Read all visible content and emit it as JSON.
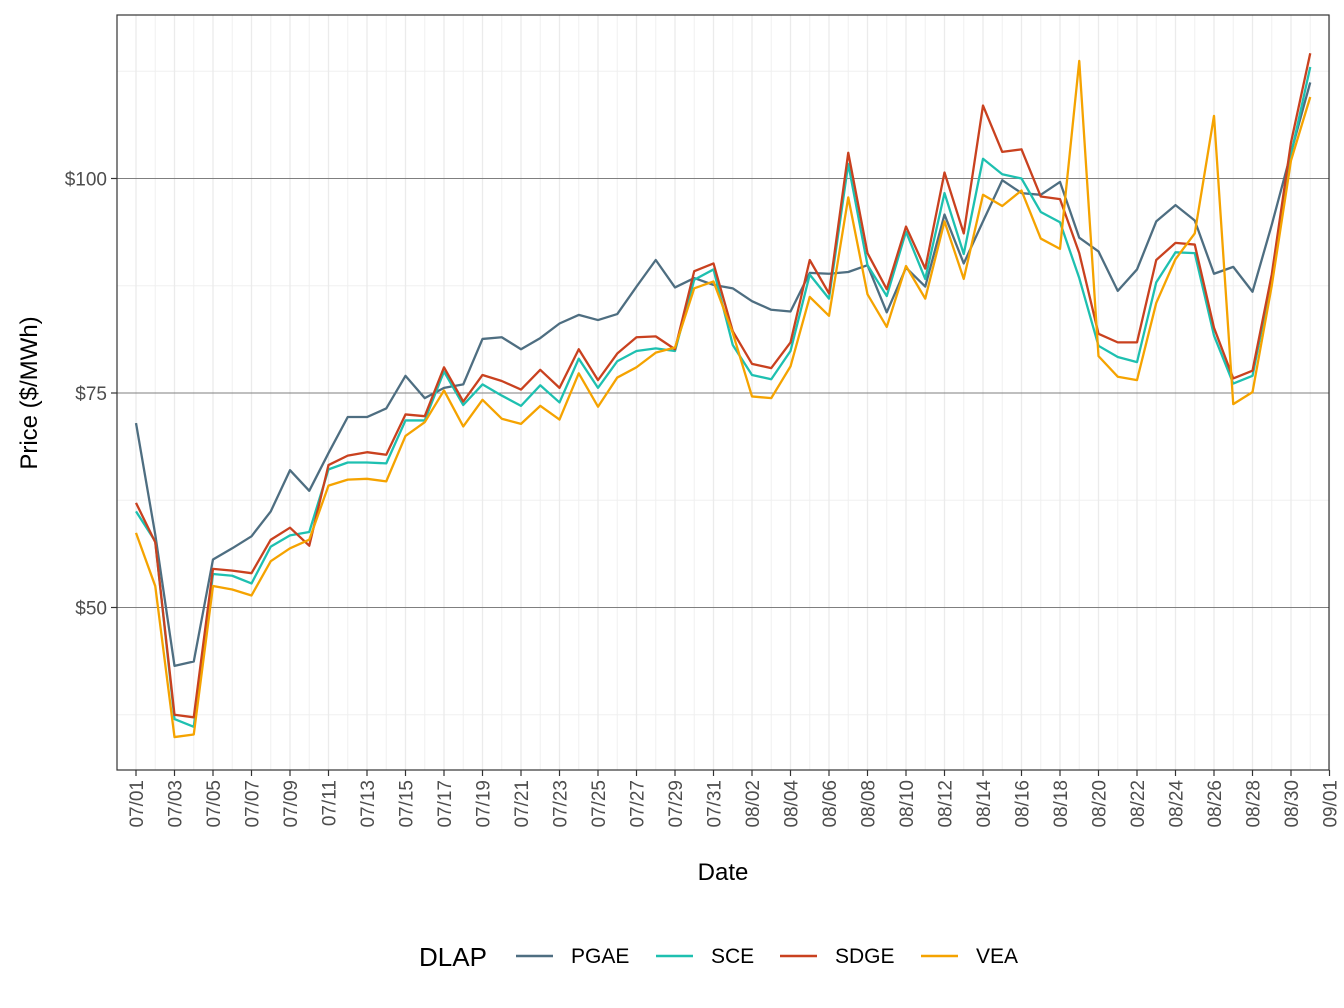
{
  "chart_data": {
    "type": "line",
    "title": "",
    "xlabel": "Date",
    "ylabel": "Price ($/MWh)",
    "ylim": [
      30,
      120
    ],
    "y_ticks": [
      50,
      75,
      100
    ],
    "y_tick_labels": [
      "$50",
      "$75",
      "$100"
    ],
    "x_tick_labels": [
      "07/01",
      "07/03",
      "07/05",
      "07/07",
      "07/09",
      "07/11",
      "07/13",
      "07/15",
      "07/17",
      "07/19",
      "07/21",
      "07/23",
      "07/25",
      "07/27",
      "07/29",
      "07/31",
      "08/02",
      "08/04",
      "08/06",
      "08/08",
      "08/10",
      "08/12",
      "08/14",
      "08/16",
      "08/18",
      "08/20",
      "08/22",
      "08/24",
      "08/26",
      "08/28",
      "08/30",
      "09/01"
    ],
    "grid": true,
    "legend": {
      "title": "DLAP",
      "position": "bottom"
    },
    "x": [
      "07/01",
      "07/02",
      "07/03",
      "07/04",
      "07/05",
      "07/06",
      "07/07",
      "07/08",
      "07/09",
      "07/10",
      "07/11",
      "07/12",
      "07/13",
      "07/14",
      "07/15",
      "07/16",
      "07/17",
      "07/18",
      "07/19",
      "07/20",
      "07/21",
      "07/22",
      "07/23",
      "07/24",
      "07/25",
      "07/26",
      "07/27",
      "07/28",
      "07/29",
      "07/30",
      "07/31",
      "08/01",
      "08/02",
      "08/03",
      "08/04",
      "08/05",
      "08/06",
      "08/07",
      "08/08",
      "08/09",
      "08/10",
      "08/11",
      "08/12",
      "08/13",
      "08/14",
      "08/15",
      "08/16",
      "08/17",
      "08/18",
      "08/19",
      "08/20",
      "08/21",
      "08/22",
      "08/23",
      "08/24",
      "08/25",
      "08/26",
      "08/27",
      "08/28",
      "08/29",
      "08/30",
      "08/31"
    ],
    "series": [
      {
        "name": "PGAE",
        "color": "#4e6e81",
        "values": [
          71.5,
          58.5,
          43.2,
          43.7,
          55.6,
          56.9,
          58.3,
          61.2,
          66.0,
          63.6,
          68.0,
          72.2,
          72.2,
          73.2,
          77.0,
          74.4,
          75.6,
          76.0,
          81.3,
          81.5,
          80.1,
          81.4,
          83.1,
          84.1,
          83.5,
          84.2,
          87.4,
          90.5,
          87.3,
          88.4,
          87.6,
          87.2,
          85.7,
          84.7,
          84.5,
          89.0,
          88.9,
          89.1,
          89.9,
          84.4,
          89.6,
          87.4,
          95.8,
          90.1,
          95.0,
          99.8,
          98.3,
          98.1,
          99.6,
          93.1,
          91.5,
          86.9,
          89.4,
          95.0,
          96.9,
          95.1,
          88.9,
          89.7,
          86.8,
          94.6,
          103.0,
          111.2
        ]
      },
      {
        "name": "SCE",
        "color": "#1ec0b0",
        "values": [
          61.2,
          57.7,
          37.0,
          36.1,
          53.9,
          53.7,
          52.8,
          57.1,
          58.4,
          58.8,
          66.1,
          66.9,
          66.9,
          66.8,
          71.8,
          71.8,
          77.5,
          73.6,
          76.0,
          74.7,
          73.5,
          75.9,
          73.9,
          79.0,
          75.6,
          78.7,
          79.9,
          80.2,
          79.9,
          88.2,
          89.4,
          80.6,
          77.1,
          76.6,
          79.9,
          88.8,
          86.0,
          101.7,
          89.9,
          86.3,
          93.8,
          88.3,
          98.3,
          91.2,
          102.3,
          100.5,
          100.0,
          96.1,
          94.9,
          88.4,
          80.5,
          79.2,
          78.6,
          87.9,
          91.4,
          91.3,
          81.7,
          76.1,
          77.0,
          88.3,
          102.8,
          113.0
        ]
      },
      {
        "name": "SDGE",
        "color": "#c9411f",
        "values": [
          62.2,
          57.6,
          37.5,
          37.2,
          54.5,
          54.3,
          54.0,
          57.9,
          59.3,
          57.2,
          66.6,
          67.7,
          68.1,
          67.8,
          72.5,
          72.3,
          78.0,
          74.0,
          77.1,
          76.4,
          75.4,
          77.7,
          75.6,
          80.1,
          76.5,
          79.6,
          81.5,
          81.6,
          80.1,
          89.2,
          90.1,
          82.2,
          78.4,
          77.9,
          80.9,
          90.5,
          86.6,
          103.0,
          91.3,
          87.1,
          94.4,
          89.5,
          100.7,
          93.6,
          108.5,
          103.1,
          103.4,
          97.9,
          97.6,
          91.3,
          81.9,
          80.9,
          80.9,
          90.5,
          92.5,
          92.3,
          82.6,
          76.7,
          77.6,
          88.8,
          104.2,
          114.6
        ]
      },
      {
        "name": "VEA",
        "color": "#f5a300",
        "values": [
          58.7,
          52.5,
          34.9,
          35.2,
          52.5,
          52.1,
          51.4,
          55.4,
          56.9,
          57.9,
          64.2,
          64.9,
          65.0,
          64.7,
          70.0,
          71.6,
          75.3,
          71.1,
          74.2,
          72.0,
          71.4,
          73.5,
          71.9,
          77.3,
          73.4,
          76.8,
          78.0,
          79.7,
          80.3,
          87.2,
          88.0,
          82.0,
          74.6,
          74.4,
          78.1,
          86.2,
          84.0,
          97.8,
          86.5,
          82.7,
          89.8,
          86.0,
          95.0,
          88.3,
          98.1,
          96.8,
          98.6,
          93.0,
          91.8,
          113.7,
          79.3,
          76.9,
          76.5,
          85.5,
          90.6,
          93.6,
          107.3,
          73.7,
          75.1,
          87.5,
          102.1,
          109.5
        ]
      }
    ]
  }
}
